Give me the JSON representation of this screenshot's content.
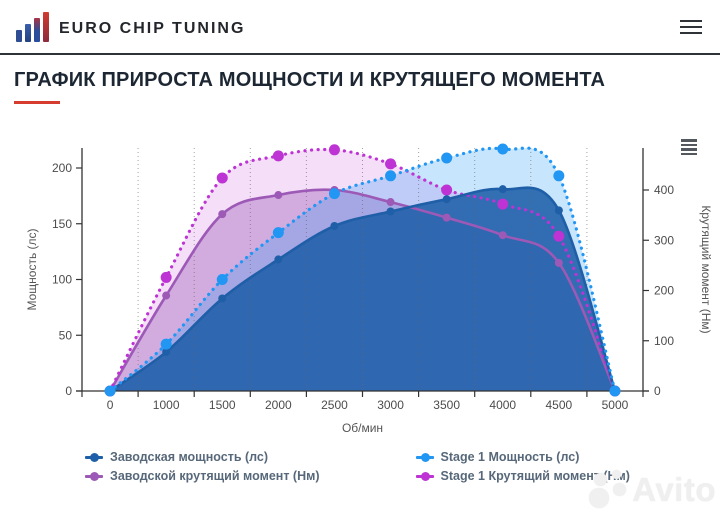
{
  "header": {
    "logo_text": "EURO CHIP TUNING"
  },
  "title": "ГРАФИК ПРИРОСТА МОЩНОСТИ И КРУТЯЩЕГО МОМЕНТА",
  "watermark": "Avito",
  "colors": {
    "accent_red": "#d63b2f",
    "factory_power": "#1f5fa8",
    "factory_torque": "#9c59b6",
    "stage1_power": "#2196f3",
    "stage1_torque": "#bd33d4",
    "axis_line": "#333333",
    "tick_text": "#4c4c4c"
  },
  "chart_data": {
    "type": "line",
    "x": {
      "label": "Об/мин",
      "categories": [
        "0",
        "1000",
        "1500",
        "2000",
        "2500",
        "3000",
        "3500",
        "4000",
        "4500",
        "5000"
      ]
    },
    "y_left": {
      "label": "Мощность (лс)",
      "min": 0,
      "max": 200,
      "tick_step": 50
    },
    "y_right": {
      "label": "Крутящий момент (Нм)",
      "min": 0,
      "max": 400,
      "tick_step": 100
    },
    "grid": "vertical-dotted",
    "legend_position": "bottom",
    "series": [
      {
        "name": "Заводская мощность (лс)",
        "axis": "left",
        "line": "solid",
        "color": "#1f5fa8",
        "fill_opacity": 0.88,
        "marker": 4,
        "values": [
          0,
          35,
          83,
          118,
          148,
          161,
          172,
          181,
          162,
          0
        ]
      },
      {
        "name": "Заводской крутящий момент (Нм)",
        "axis": "right",
        "line": "solid",
        "color": "#9c59b6",
        "fill_opacity": 0.38,
        "marker": 4,
        "values": [
          0,
          190,
          352,
          390,
          400,
          376,
          345,
          310,
          255,
          0
        ]
      },
      {
        "name": "Stage 1 Мощность (лс)",
        "axis": "left",
        "line": "dotted",
        "color": "#2196f3",
        "fill_opacity": 0.25,
        "marker": 5.5,
        "values": [
          0,
          42,
          100,
          142,
          177,
          193,
          209,
          217,
          193,
          0
        ]
      },
      {
        "name": "Stage 1 Крутящий момент (Нм)",
        "axis": "right",
        "line": "dotted",
        "color": "#bd33d4",
        "fill_opacity": 0.16,
        "marker": 5.5,
        "values": [
          0,
          226,
          424,
          468,
          480,
          452,
          400,
          372,
          308,
          0
        ]
      }
    ],
    "legend_columns": [
      [
        0,
        1
      ],
      [
        2,
        3
      ]
    ]
  }
}
